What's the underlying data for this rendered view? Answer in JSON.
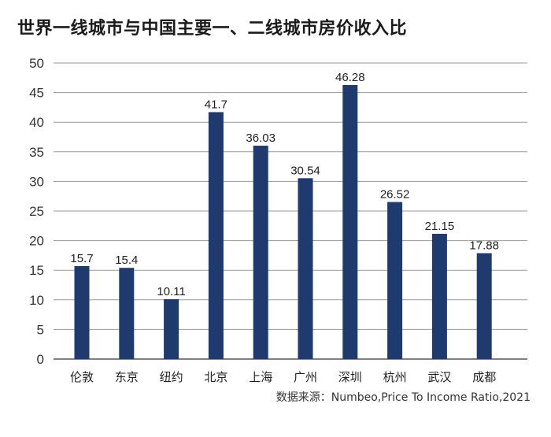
{
  "chart_data": {
    "type": "bar",
    "title": "世界一线城市与中国主要一、二线城市房价收入比",
    "categories": [
      "伦敦",
      "东京",
      "纽约",
      "北京",
      "上海",
      "广州",
      "深圳",
      "杭州",
      "武汉",
      "成都"
    ],
    "values": [
      15.7,
      15.4,
      10.11,
      41.7,
      36.03,
      30.54,
      46.28,
      26.52,
      21.15,
      17.88
    ],
    "data_labels": [
      "15.7",
      "15.4",
      "10.11",
      "41.7",
      "36.03",
      "30.54",
      "46.28",
      "26.52",
      "21.15",
      "17.88"
    ],
    "yticks": [
      0,
      5,
      10,
      15,
      20,
      25,
      30,
      35,
      40,
      45,
      50
    ],
    "ylim": [
      0,
      50
    ],
    "xlabel": "",
    "ylabel": "",
    "grid": true,
    "legend": "none",
    "bar_color": "#1f3b6e",
    "grid_color": "#999999",
    "source": "数据来源：Numbeo,Price To Income Ratio,2021"
  }
}
